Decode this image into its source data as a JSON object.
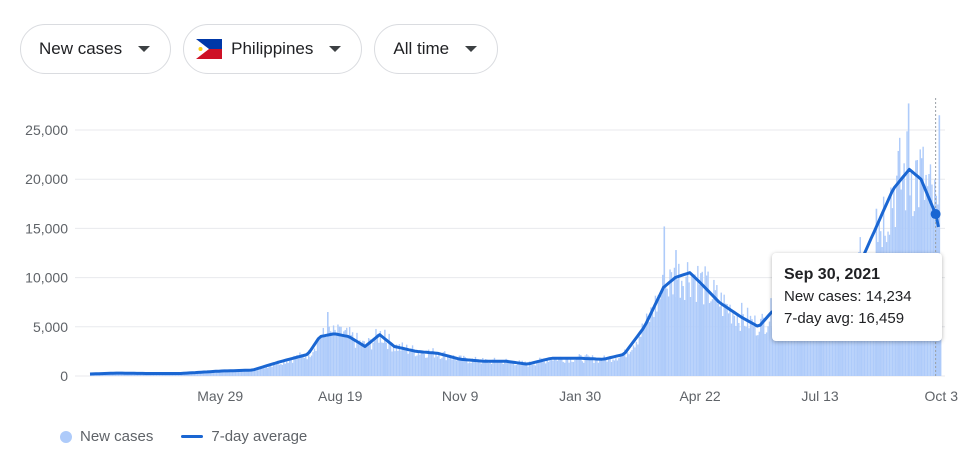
{
  "controls": {
    "metric": {
      "label": "New cases"
    },
    "location": {
      "label": "Philippines",
      "flag_icon": "philippines-flag-icon"
    },
    "period": {
      "label": "All time"
    }
  },
  "colors": {
    "bars": "#aecbfa",
    "line": "#1a66d2",
    "grid": "#e8eaed",
    "text": "#5f6368"
  },
  "chart_data": {
    "type": "bar",
    "series": [
      {
        "name": "New cases",
        "type": "bar",
        "values_description_source": "daily"
      },
      {
        "name": "7-day average",
        "type": "line"
      }
    ],
    "yticks": [
      "0",
      "5,000",
      "10,000",
      "15,000",
      "20,000",
      "25,000"
    ],
    "ylim": [
      0,
      27000
    ],
    "xticks": [
      "May 29",
      "Aug 19",
      "Nov 9",
      "Jan 30",
      "Apr 22",
      "Jul 13",
      "Oct 3"
    ],
    "avg_points": [
      [
        "Mar 1, 2020",
        200
      ],
      [
        "Mar 20, 2020",
        300
      ],
      [
        "Apr 10, 2020",
        250
      ],
      [
        "May 1, 2020",
        250
      ],
      [
        "May 29, 2020",
        500
      ],
      [
        "Jun 20, 2020",
        600
      ],
      [
        "Jul 10, 2020",
        1500
      ],
      [
        "Jul 28, 2020",
        2200
      ],
      [
        "Aug 5, 2020",
        4000
      ],
      [
        "Aug 15, 2020",
        4300
      ],
      [
        "Aug 25, 2020",
        4000
      ],
      [
        "Sep 5, 2020",
        3000
      ],
      [
        "Sep 15, 2020",
        4200
      ],
      [
        "Sep 25, 2020",
        3000
      ],
      [
        "Oct 10, 2020",
        2500
      ],
      [
        "Oct 25, 2020",
        2300
      ],
      [
        "Nov 9, 2020",
        1700
      ],
      [
        "Nov 25, 2020",
        1500
      ],
      [
        "Dec 10, 2020",
        1500
      ],
      [
        "Dec 25, 2020",
        1200
      ],
      [
        "Jan 10, 2021",
        1800
      ],
      [
        "Jan 30, 2021",
        1800
      ],
      [
        "Feb 15, 2021",
        1700
      ],
      [
        "Mar 1, 2021",
        2200
      ],
      [
        "Mar 15, 2021",
        5000
      ],
      [
        "Mar 28, 2021",
        9000
      ],
      [
        "Apr 5, 2021",
        10000
      ],
      [
        "Apr 15, 2021",
        10500
      ],
      [
        "Apr 22, 2021",
        9500
      ],
      [
        "May 5, 2021",
        7500
      ],
      [
        "May 20, 2021",
        6000
      ],
      [
        "Jun 1, 2021",
        5000
      ],
      [
        "Jun 10, 2021",
        6500
      ],
      [
        "Jun 20, 2021",
        6500
      ],
      [
        "Jul 1, 2021",
        6000
      ],
      [
        "Jul 13, 2021",
        5500
      ],
      [
        "Jul 25, 2021",
        7000
      ],
      [
        "Aug 5, 2021",
        10000
      ],
      [
        "Aug 20, 2021",
        15000
      ],
      [
        "Sep 1, 2021",
        19000
      ],
      [
        "Sep 12, 2021",
        21000
      ],
      [
        "Sep 20, 2021",
        20000
      ],
      [
        "Sep 30, 2021",
        16459
      ],
      [
        "Oct 3, 2021",
        14500
      ]
    ],
    "bar_points": [
      [
        "Mar 1, 2020",
        0
      ],
      [
        "May 29, 2020",
        600
      ],
      [
        "Aug 10, 2020",
        6500
      ],
      [
        "Aug 19, 2020",
        5000
      ],
      [
        "Sep 18, 2020",
        4700
      ],
      [
        "Nov 9, 2020",
        1800
      ],
      [
        "Jan 30, 2021",
        2000
      ],
      [
        "Mar 28, 2021",
        15200
      ],
      [
        "Apr 5, 2021",
        12800
      ],
      [
        "Apr 22, 2021",
        10000
      ],
      [
        "Jun 1, 2021",
        4500
      ],
      [
        "Jul 13, 2021",
        5500
      ],
      [
        "Aug 20, 2021",
        17000
      ],
      [
        "Sep 11, 2021",
        27700
      ],
      [
        "Sep 30, 2021",
        14234
      ],
      [
        "Oct 2, 2021",
        26500
      ]
    ],
    "tooltip": {
      "date": "Sep 30, 2021",
      "new_cases_text": "New cases: 14,234",
      "avg_text": "7-day avg: 16,459"
    },
    "legend": [
      "New cases",
      "7-day average"
    ]
  }
}
